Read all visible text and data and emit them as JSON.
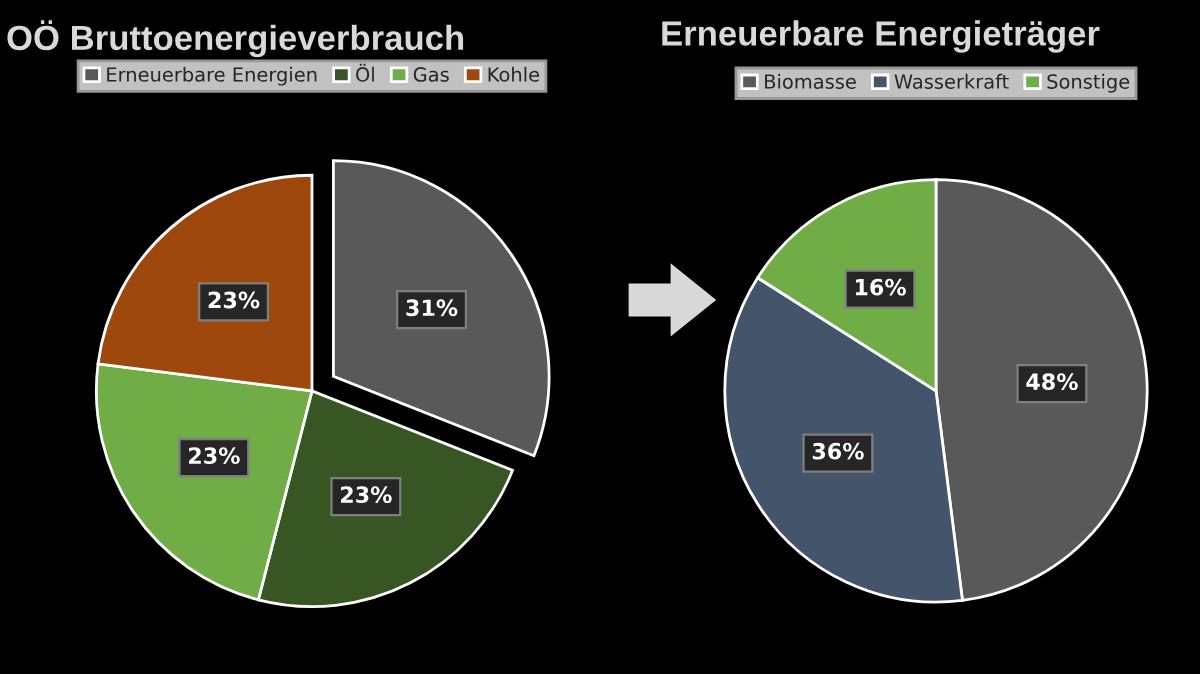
{
  "chart_data": [
    {
      "type": "pie",
      "title": "OÖ Bruttoenergieverbrauch",
      "categories": [
        "Erneuerbare Energien",
        "Öl",
        "Gas",
        "Kohle"
      ],
      "values": [
        31,
        23,
        23,
        23
      ],
      "colors": [
        "#595959",
        "#375623",
        "#70ad47",
        "#9e480e"
      ],
      "value_labels": [
        "31%",
        "23%",
        "23%",
        "23%"
      ],
      "legend": "top"
    },
    {
      "type": "pie",
      "title": "Erneuerbare Energieträger",
      "categories": [
        "Biomasse",
        "Wasserkraft",
        "Sonstige"
      ],
      "values": [
        48,
        36,
        16
      ],
      "colors": [
        "#595959",
        "#44546a",
        "#70ad47"
      ],
      "value_labels": [
        "48%",
        "36%",
        "16%"
      ],
      "legend": "top"
    }
  ]
}
